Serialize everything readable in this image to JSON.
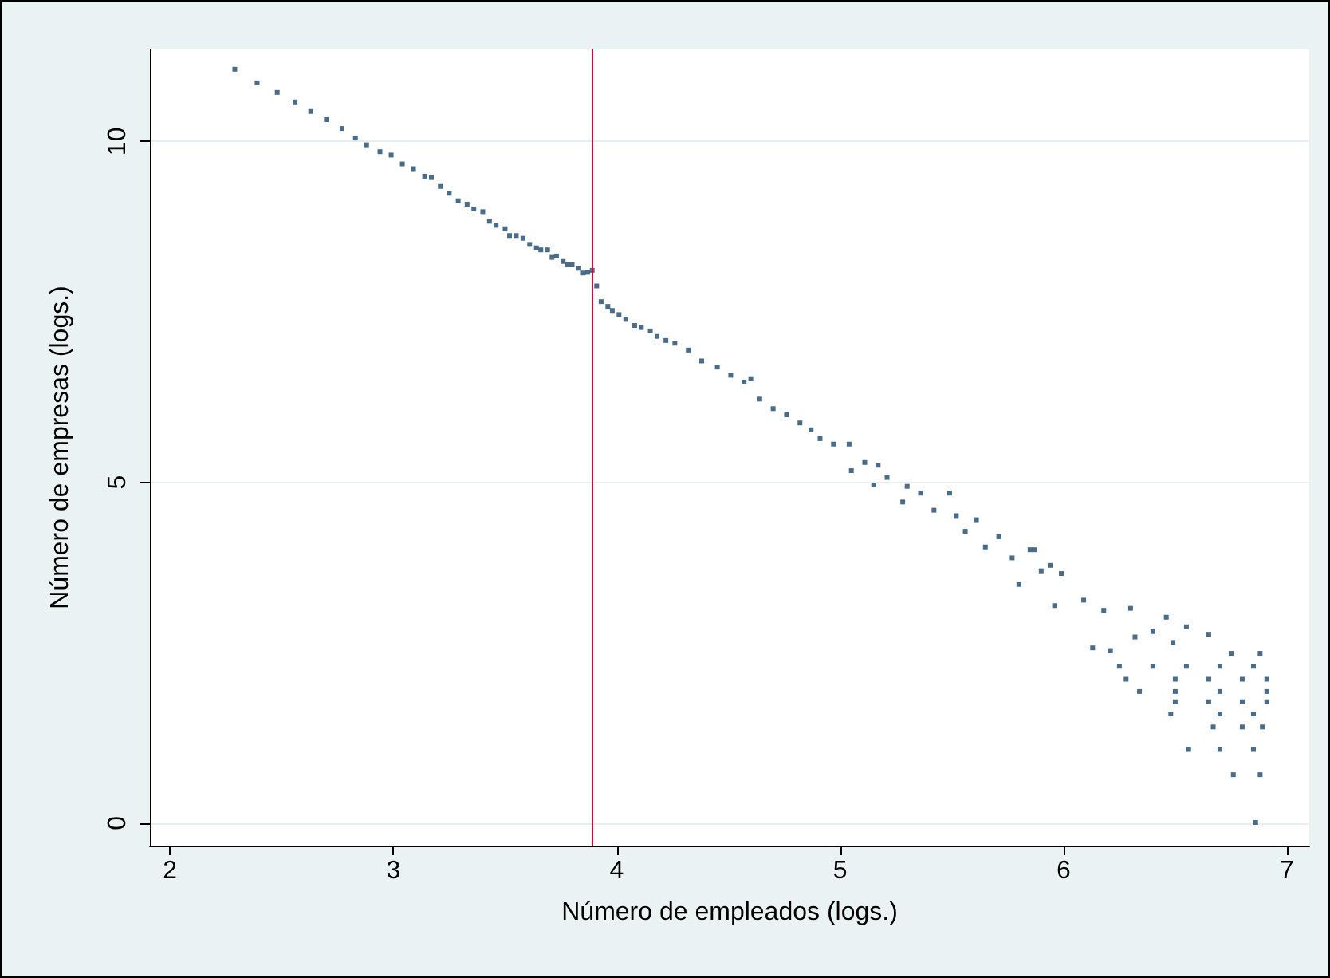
{
  "chart_data": {
    "type": "scatter",
    "xlabel": "Número de empleados (logs.)",
    "ylabel": "Número de empresas (logs.)",
    "xlim": [
      1.91,
      7.1
    ],
    "ylim": [
      -0.33,
      11.35
    ],
    "xticks": [
      2,
      3,
      4,
      5,
      6,
      7
    ],
    "yticks": [
      0,
      5,
      10
    ],
    "grid": "y",
    "marker": "square",
    "ref_lines": [
      {
        "axis": "x",
        "value": 3.89,
        "color": "#d10a38"
      }
    ],
    "series": [
      {
        "color": "#1a476f",
        "x": [
          2.29,
          2.39,
          2.48,
          2.56,
          2.63,
          2.7,
          2.77,
          2.83,
          2.88,
          2.94,
          2.99,
          3.04,
          3.09,
          3.14,
          3.17,
          3.21,
          3.25,
          3.29,
          3.33,
          3.36,
          3.4,
          3.43,
          3.46,
          3.5,
          3.52,
          3.55,
          3.58,
          3.61,
          3.64,
          3.66,
          3.69,
          3.71,
          3.73,
          3.76,
          3.78,
          3.8,
          3.83,
          3.85,
          3.87,
          3.89,
          3.91,
          3.93,
          3.96,
          3.98,
          4.01,
          4.04,
          4.08,
          4.11,
          4.15,
          4.18,
          4.22,
          4.26,
          4.32,
          4.38,
          4.45,
          4.51,
          4.57,
          4.6,
          4.64,
          4.7,
          4.76,
          4.82,
          4.87,
          4.91,
          4.97,
          5.04,
          5.05,
          5.11,
          5.15,
          5.17,
          5.21,
          5.28,
          5.3,
          5.36,
          5.42,
          5.49,
          5.52,
          5.56,
          5.61,
          5.65,
          5.71,
          5.77,
          5.8,
          5.85,
          5.87,
          5.9,
          5.94,
          5.96,
          5.99,
          6.09,
          6.13,
          6.18,
          6.21,
          6.25,
          6.3,
          6.32,
          6.4,
          6.46,
          6.49,
          6.55,
          6.65,
          6.75,
          6.88,
          6.4,
          6.55,
          6.7,
          6.85,
          6.28,
          6.5,
          6.65,
          6.8,
          6.91,
          6.34,
          6.5,
          6.7,
          6.91,
          6.5,
          6.65,
          6.8,
          6.91,
          6.48,
          6.7,
          6.85,
          6.67,
          6.8,
          6.89,
          6.56,
          6.7,
          6.85,
          6.76,
          6.88,
          6.86
        ],
        "values": [
          11.06,
          10.86,
          10.72,
          10.58,
          10.44,
          10.32,
          10.19,
          10.05,
          9.95,
          9.85,
          9.8,
          9.67,
          9.6,
          9.49,
          9.47,
          9.34,
          9.24,
          9.13,
          9.08,
          9.01,
          8.97,
          8.83,
          8.77,
          8.72,
          8.62,
          8.62,
          8.58,
          8.49,
          8.44,
          8.41,
          8.41,
          8.3,
          8.32,
          8.24,
          8.19,
          8.19,
          8.14,
          8.07,
          8.08,
          8.11,
          7.88,
          7.65,
          7.58,
          7.52,
          7.46,
          7.39,
          7.3,
          7.27,
          7.22,
          7.14,
          7.08,
          7.04,
          6.94,
          6.78,
          6.69,
          6.57,
          6.47,
          6.52,
          6.22,
          6.08,
          5.99,
          5.87,
          5.77,
          5.64,
          5.56,
          5.56,
          5.17,
          5.29,
          4.96,
          5.25,
          5.07,
          4.71,
          4.94,
          4.84,
          4.59,
          4.84,
          4.51,
          4.28,
          4.45,
          4.05,
          4.2,
          3.89,
          3.5,
          4.01,
          4.01,
          3.7,
          3.78,
          3.19,
          3.66,
          3.27,
          2.57,
          3.12,
          2.53,
          2.3,
          3.15,
          2.73,
          2.81,
          3.02,
          2.65,
          2.88,
          2.77,
          2.49,
          2.49,
          2.3,
          2.3,
          2.3,
          2.3,
          2.11,
          2.11,
          2.11,
          2.11,
          2.11,
          1.93,
          1.93,
          1.93,
          1.93,
          1.78,
          1.78,
          1.78,
          1.78,
          1.6,
          1.6,
          1.6,
          1.41,
          1.41,
          1.41,
          1.08,
          1.08,
          1.08,
          0.71,
          0.71,
          0.01
        ]
      }
    ]
  }
}
